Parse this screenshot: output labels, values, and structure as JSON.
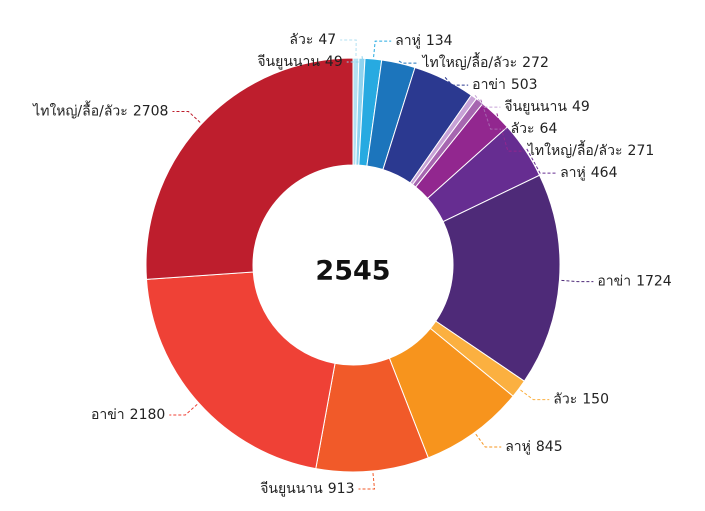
{
  "chart_data": {
    "type": "donut",
    "title": "2545",
    "categories": [
      "ลัวะ",
      "จีนยูนนาน",
      "ลาหู่",
      "ไทใหญ่/ลื้อ/ลัวะ",
      "อาข่า",
      "จีนยูนนาน",
      "ลัวะ",
      "ไทใหญ่/ลื้อ/ลัวะ",
      "ลาหู่",
      "อาข่า",
      "ลัวะ",
      "ลาหู่",
      "จีนยูนนาน",
      "อาข่า",
      "ไทใหญ่/ลื้อ/ลัวะ"
    ],
    "values": [
      47,
      49,
      134,
      272,
      503,
      49,
      64,
      271,
      464,
      1724,
      150,
      845,
      913,
      2180,
      2708
    ],
    "colors": [
      "#b3e0f2",
      "#8ed3ef",
      "#27aae1",
      "#1c75bc",
      "#2b3990",
      "#c7a2d6",
      "#a666b0",
      "#92278f",
      "#662d91",
      "#4e2a78",
      "#fbb040",
      "#f7941d",
      "#f15a29",
      "#ef4136",
      "#be1e2d"
    ]
  }
}
